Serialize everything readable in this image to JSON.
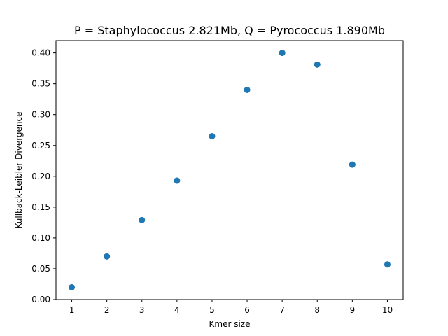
{
  "chart_data": {
    "type": "scatter",
    "title": "P = Staphylococcus 2.821Mb, Q = Pyrococcus 1.890Mb",
    "xlabel": "Kmer size",
    "ylabel": "Kullback-Leibler Divergence",
    "x": [
      1,
      2,
      3,
      4,
      5,
      6,
      7,
      8,
      9,
      10
    ],
    "y": [
      0.02,
      0.07,
      0.129,
      0.193,
      0.265,
      0.34,
      0.4,
      0.381,
      0.219,
      0.057
    ],
    "xlim": [
      0.55,
      10.45
    ],
    "ylim": [
      0.0,
      0.42
    ],
    "xticks": [
      1,
      2,
      3,
      4,
      5,
      6,
      7,
      8,
      9,
      10
    ],
    "xtick_labels": [
      "1",
      "2",
      "3",
      "4",
      "5",
      "6",
      "7",
      "8",
      "9",
      "10"
    ],
    "yticks": [
      0.0,
      0.05,
      0.1,
      0.15,
      0.2,
      0.25,
      0.3,
      0.35,
      0.4
    ],
    "ytick_labels": [
      "0.00",
      "0.05",
      "0.10",
      "0.15",
      "0.20",
      "0.25",
      "0.30",
      "0.35",
      "0.40"
    ],
    "marker_color": "#1f77b4",
    "grid": false,
    "legend": "none"
  }
}
